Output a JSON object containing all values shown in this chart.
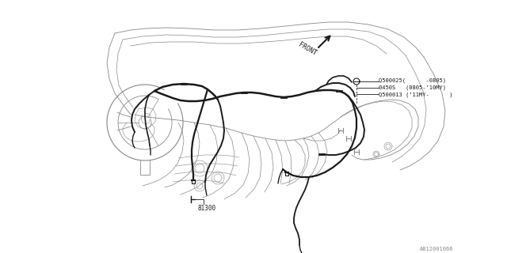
{
  "bg_color": "#ffffff",
  "line_color": "#1a1a1a",
  "gray_color": "#888888",
  "label_81300": "81300",
  "label_front": "FRONT",
  "label_q1": "Q500025(      -0805)",
  "label_q2": "0450S   (0805-’10MY)",
  "label_q3": "Q500013 (’11MY-      )",
  "label_diagram_id": "A812001066",
  "font_size_small": 5.5,
  "font_size_id": 5.0
}
